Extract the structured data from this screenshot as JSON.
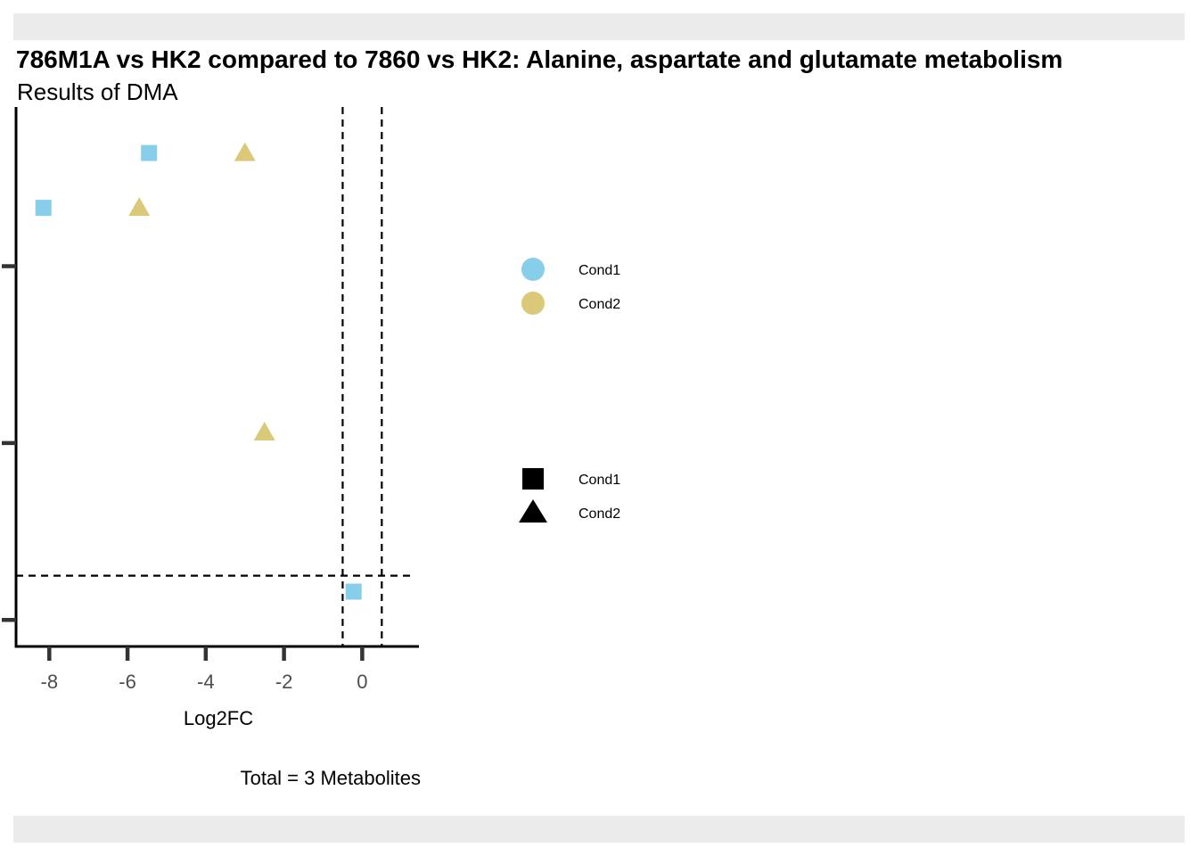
{
  "chart_data": {
    "type": "scatter",
    "title": "786M1A vs HK2 compared to 7860 vs HK2: Alanine, aspartate and glutamate metabolism",
    "subtitle": "Results of DMA",
    "xlabel": "Log2FC",
    "caption": "Total = 3 Metabolites",
    "xlim": [
      -8.85,
      1.45
    ],
    "ylim": [
      -0.15,
      2.9
    ],
    "x_ticks": [
      -8,
      -6,
      -4,
      -2,
      0
    ],
    "x_tick_labels": [
      "-8",
      "-6",
      "-4",
      "-2",
      "0"
    ],
    "y_ticks": [
      0,
      1,
      2
    ],
    "vlines": [
      -0.5,
      0.5
    ],
    "hline": 0.25,
    "colors": {
      "Cond1": "#87ceeb",
      "Cond2": "#dbc97a"
    },
    "points": [
      {
        "x": -5.45,
        "y": 2.64,
        "condition": "Cond1",
        "shape": "square"
      },
      {
        "x": -3.0,
        "y": 2.64,
        "condition": "Cond2",
        "shape": "triangle"
      },
      {
        "x": -8.15,
        "y": 2.33,
        "condition": "Cond1",
        "shape": "square"
      },
      {
        "x": -5.7,
        "y": 2.33,
        "condition": "Cond2",
        "shape": "triangle"
      },
      {
        "x": -2.5,
        "y": 1.06,
        "condition": "Cond2",
        "shape": "triangle"
      },
      {
        "x": -0.22,
        "y": 0.16,
        "condition": "Cond1",
        "shape": "square"
      }
    ],
    "legend_color": {
      "placement": "right",
      "items": [
        {
          "label": "Cond1",
          "color": "#87ceeb"
        },
        {
          "label": "Cond2",
          "color": "#dbc97a"
        }
      ]
    },
    "legend_shape": {
      "placement": "right",
      "items": [
        {
          "label": "Cond1",
          "shape": "square"
        },
        {
          "label": "Cond2",
          "shape": "triangle"
        }
      ]
    }
  }
}
